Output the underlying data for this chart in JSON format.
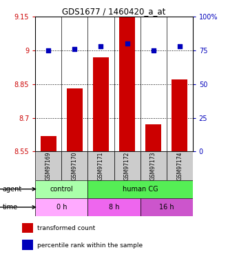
{
  "title": "GDS1677 / 1460420_a_at",
  "samples": [
    "GSM97169",
    "GSM97170",
    "GSM97171",
    "GSM97172",
    "GSM97173",
    "GSM97174"
  ],
  "bar_values": [
    8.62,
    8.83,
    8.97,
    9.15,
    8.67,
    8.87
  ],
  "dot_values": [
    75,
    76,
    78,
    80,
    75,
    78
  ],
  "ylim_left": [
    8.55,
    9.15
  ],
  "ylim_right": [
    0,
    100
  ],
  "yticks_left": [
    8.55,
    8.7,
    8.85,
    9.0,
    9.15
  ],
  "yticks_right": [
    0,
    25,
    50,
    75,
    100
  ],
  "ytick_labels_left": [
    "8.55",
    "8.7",
    "8.85",
    "9",
    "9.15"
  ],
  "ytick_labels_right": [
    "0",
    "25",
    "50",
    "75",
    "100%"
  ],
  "bar_color": "#CC0000",
  "dot_color": "#0000BB",
  "bar_bottom": 8.55,
  "agent_groups": [
    {
      "label": "control",
      "span": [
        0,
        2
      ],
      "color": "#AAFFAA"
    },
    {
      "label": "human CG",
      "span": [
        2,
        6
      ],
      "color": "#55EE55"
    }
  ],
  "time_groups": [
    {
      "label": "0 h",
      "span": [
        0,
        2
      ],
      "color": "#FFAAFF"
    },
    {
      "label": "8 h",
      "span": [
        2,
        4
      ],
      "color": "#EE66EE"
    },
    {
      "label": "16 h",
      "span": [
        4,
        6
      ],
      "color": "#CC55CC"
    }
  ],
  "legend_items": [
    {
      "color": "#CC0000",
      "label": "transformed count"
    },
    {
      "color": "#0000BB",
      "label": "percentile rank within the sample"
    }
  ],
  "grid_lines": [
    8.7,
    8.85,
    9.0
  ],
  "left_tick_color": "#CC0000",
  "right_tick_color": "#0000BB",
  "sample_bg_color": "#CCCCCC"
}
